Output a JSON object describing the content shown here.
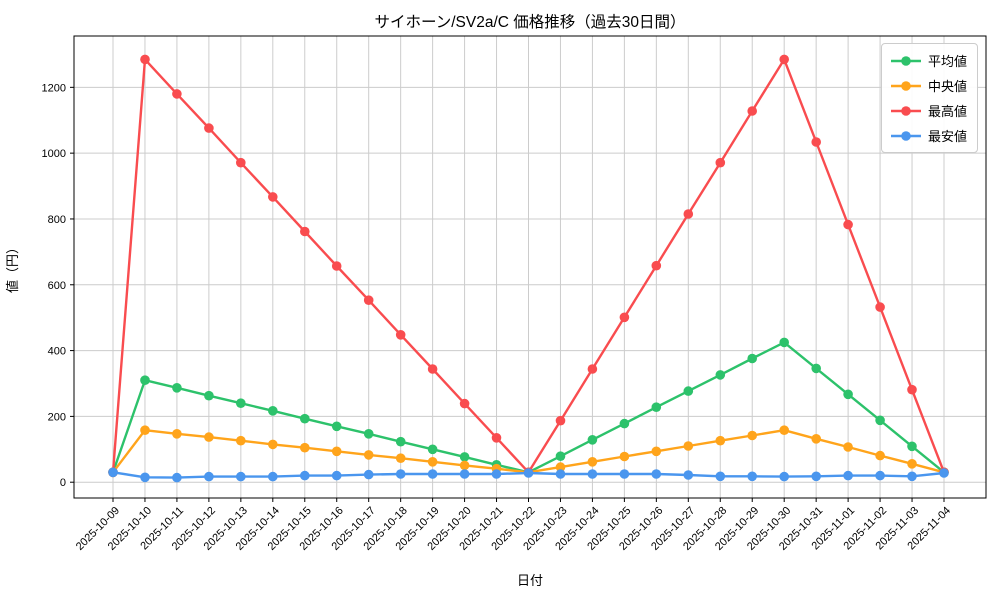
{
  "chart_data": {
    "type": "line",
    "title": "サイホーン/SV2a/C 価格推移（過去30日間）",
    "xlabel": "日付",
    "ylabel": "値（円）",
    "x": [
      "2025-10-09",
      "2025-10-10",
      "2025-10-11",
      "2025-10-12",
      "2025-10-13",
      "2025-10-14",
      "2025-10-15",
      "2025-10-16",
      "2025-10-17",
      "2025-10-18",
      "2025-10-19",
      "2025-10-20",
      "2025-10-21",
      "2025-10-22",
      "2025-10-23",
      "2025-10-24",
      "2025-10-25",
      "2025-10-26",
      "2025-10-27",
      "2025-10-28",
      "2025-10-29",
      "2025-10-30",
      "2025-10-31",
      "2025-11-01",
      "2025-11-02",
      "2025-11-03",
      "2025-11-04"
    ],
    "yticks": [
      0,
      200,
      400,
      600,
      800,
      1000,
      1200
    ],
    "ylim": [
      -48,
      1356
    ],
    "grid": true,
    "legend_position": "upper right",
    "series": [
      {
        "key": "average",
        "name": "平均値",
        "color": "#2dc26b",
        "values": [
          30,
          310,
          287,
          263,
          240,
          217,
          193,
          170,
          147,
          123,
          100,
          77,
          53,
          30,
          79,
          129,
          178,
          228,
          277,
          326,
          376,
          425,
          346,
          267,
          188,
          109,
          30
        ]
      },
      {
        "key": "median",
        "name": "中央値",
        "color": "#ffa41b",
        "values": [
          30,
          158,
          147,
          137,
          126,
          115,
          105,
          94,
          83,
          73,
          62,
          51,
          41,
          30,
          46,
          62,
          78,
          94,
          110,
          126,
          142,
          158,
          132,
          107,
          81,
          56,
          30
        ]
      },
      {
        "key": "highest",
        "name": "最高値",
        "color": "#f94c4f",
        "values": [
          30,
          1285,
          1180,
          1076,
          971,
          867,
          762,
          657,
          553,
          448,
          344,
          239,
          135,
          30,
          187,
          344,
          501,
          658,
          815,
          971,
          1128,
          1285,
          1034,
          783,
          532,
          281,
          30
        ]
      },
      {
        "key": "lowest",
        "name": "最安値",
        "color": "#4a96ee",
        "values": [
          30,
          15,
          14,
          17,
          17,
          17,
          20,
          20,
          23,
          25,
          25,
          25,
          25,
          28,
          25,
          25,
          25,
          25,
          22,
          18,
          18,
          17,
          18,
          20,
          20,
          18,
          28
        ]
      }
    ]
  },
  "colors": {
    "background": "#ffffff",
    "grid": "#cccccc",
    "axis": "#000000",
    "text": "#000000",
    "legend_border": "#cccccc"
  }
}
